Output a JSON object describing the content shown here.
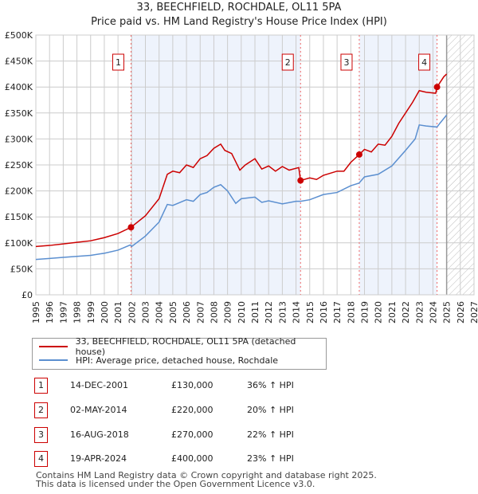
{
  "chart_data": {
    "type": "line",
    "title": "33, BEECHFIELD, ROCHDALE, OL11 5PA",
    "subtitle": "Price paid vs. HM Land Registry's House Price Index (HPI)",
    "xlim": [
      1995,
      2027
    ],
    "ylim": [
      0,
      500000
    ],
    "x_ticks": [
      "1995",
      "1996",
      "1997",
      "1998",
      "1999",
      "2000",
      "2001",
      "2002",
      "2003",
      "2004",
      "2005",
      "2006",
      "2007",
      "2008",
      "2009",
      "2010",
      "2011",
      "2012",
      "2013",
      "2014",
      "2015",
      "2016",
      "2017",
      "2018",
      "2019",
      "2020",
      "2021",
      "2022",
      "2023",
      "2024",
      "2025",
      "2026",
      "2027"
    ],
    "y_ticks": [
      "£0",
      "£50K",
      "£100K",
      "£150K",
      "£200K",
      "£250K",
      "£300K",
      "£350K",
      "£400K",
      "£450K",
      "£500K"
    ],
    "grid": true,
    "series": [
      {
        "name": "33, BEECHFIELD, ROCHDALE, OL11 5PA (detached house)",
        "color": "#cc0000",
        "x": [
          1995,
          1996,
          1997,
          1998,
          1999,
          2000,
          2001,
          2001.95,
          2003,
          2004,
          2004.6,
          2005,
          2005.5,
          2006,
          2006.5,
          2007,
          2007.5,
          2008,
          2008.5,
          2008.8,
          2009.3,
          2009.9,
          2010.3,
          2011,
          2011.5,
          2012,
          2012.5,
          2013,
          2013.5,
          2014.2,
          2014.33,
          2015,
          2015.5,
          2016,
          2017,
          2017.5,
          2018,
          2018.62,
          2019,
          2019.5,
          2020,
          2020.5,
          2021,
          2021.5,
          2022,
          2022.5,
          2023,
          2023.5,
          2024.2,
          2024.3,
          2024.8,
          2025
        ],
        "y": [
          93000,
          95000,
          98000,
          101000,
          104000,
          110000,
          118000,
          130000,
          152000,
          185000,
          232000,
          238000,
          235000,
          250000,
          245000,
          262000,
          268000,
          282000,
          290000,
          278000,
          272000,
          240000,
          250000,
          262000,
          242000,
          248000,
          238000,
          247000,
          240000,
          245000,
          220000,
          225000,
          222000,
          230000,
          238000,
          238000,
          255000,
          270000,
          280000,
          275000,
          290000,
          288000,
          305000,
          330000,
          350000,
          370000,
          393000,
          390000,
          388000,
          400000,
          420000,
          425000
        ]
      },
      {
        "name": "HPI: Average price, detached house, Rochdale",
        "color": "#5b8fd0",
        "x": [
          1995,
          1996,
          1997,
          1998,
          1999,
          2000,
          2001,
          2001.9,
          2002,
          2003,
          2004,
          2004.6,
          2005,
          2006,
          2006.5,
          2007,
          2007.5,
          2008,
          2008.5,
          2009,
          2009.6,
          2010,
          2011,
          2011.5,
          2012,
          2013,
          2014,
          2014.33,
          2015,
          2016,
          2017,
          2018,
          2018.6,
          2019,
          2020,
          2021,
          2022,
          2022.7,
          2023,
          2023.5,
          2024.3,
          2024.5,
          2025
        ],
        "y": [
          68000,
          70000,
          72000,
          74000,
          76000,
          80000,
          86000,
          96000,
          93000,
          113000,
          140000,
          174000,
          172000,
          183000,
          180000,
          193000,
          197000,
          207000,
          212000,
          200000,
          176000,
          185000,
          188000,
          178000,
          181000,
          175000,
          180000,
          180000,
          183000,
          193000,
          197000,
          210000,
          215000,
          227000,
          232000,
          248000,
          278000,
          300000,
          327000,
          325000,
          323000,
          330000,
          346000
        ]
      }
    ],
    "sales": [
      {
        "label": "1",
        "x": 2001.95,
        "y": 130000
      },
      {
        "label": "2",
        "x": 2014.33,
        "y": 220000
      },
      {
        "label": "3",
        "x": 2018.62,
        "y": 270000
      },
      {
        "label": "4",
        "x": 2024.3,
        "y": 400000
      }
    ],
    "forecast_from": 2025,
    "legend_placement": "below"
  },
  "table": [
    {
      "num": "1",
      "date": "14-DEC-2001",
      "price": "£130,000",
      "hpi": "36% ↑ HPI"
    },
    {
      "num": "2",
      "date": "02-MAY-2014",
      "price": "£220,000",
      "hpi": "20% ↑ HPI"
    },
    {
      "num": "3",
      "date": "16-AUG-2018",
      "price": "£270,000",
      "hpi": "22% ↑ HPI"
    },
    {
      "num": "4",
      "date": "19-APR-2024",
      "price": "£400,000",
      "hpi": "23% ↑ HPI"
    }
  ],
  "footer": [
    "Contains HM Land Registry data © Crown copyright and database right 2025.",
    "This data is licensed under the Open Government Licence v3.0."
  ]
}
